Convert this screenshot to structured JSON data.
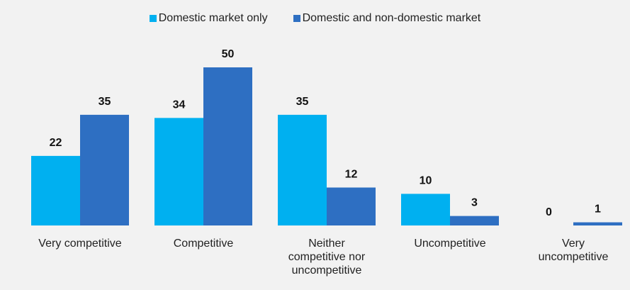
{
  "chart_data": {
    "type": "bar",
    "categories": [
      "Very competitive",
      "Competitive",
      "Neither competitive nor uncompetitive",
      "Uncompetitive",
      "Very uncompetitive"
    ],
    "series": [
      {
        "name": "Domestic market only",
        "color": "#00b0f0",
        "values": [
          22,
          34,
          35,
          10,
          0
        ]
      },
      {
        "name": "Domestic and non-domestic market",
        "color": "#2e6fc2",
        "values": [
          35,
          50,
          12,
          3,
          1
        ]
      }
    ],
    "legend": "top"
  }
}
